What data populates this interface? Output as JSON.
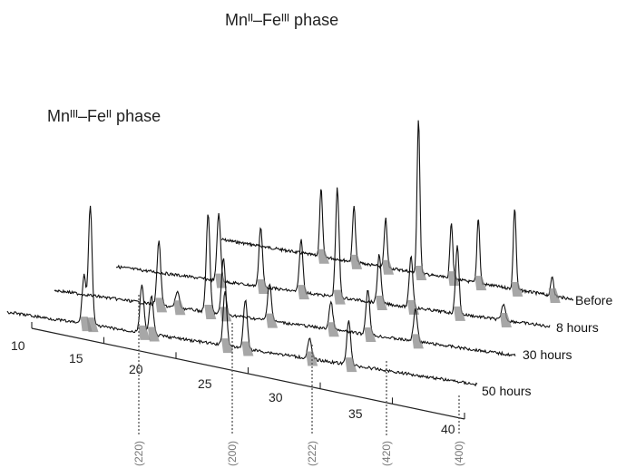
{
  "chart_data": {
    "type": "line",
    "title": "",
    "xlabel": "",
    "ylabel": "",
    "xlim": [
      10,
      40
    ],
    "x_ticks": [
      10,
      15,
      20,
      25,
      30,
      35,
      40
    ],
    "annotations": {
      "phase_left": "Mnᴵᴵᴵ–Feᴵᴵ phase",
      "phase_right": "Mnᴵᴵ–Feᴵᴵᴵ phase",
      "reflections": [
        "(220)",
        "(200)",
        "(222)",
        "(420)",
        "(400)"
      ]
    },
    "series": [
      {
        "name": "Before",
        "peaks": [
          [
            18.5,
            0.62,
            0.12
          ],
          [
            21.3,
            0.52,
            0.12
          ],
          [
            24.0,
            0.45,
            0.12
          ],
          [
            26.8,
            1.4,
            0.12
          ],
          [
            29.6,
            0.52,
            0.12
          ],
          [
            31.9,
            0.6,
            0.12
          ],
          [
            35.0,
            0.75,
            0.12
          ],
          [
            38.2,
            0.18,
            0.12
          ]
        ]
      },
      {
        "name": "8 hours",
        "peaks": [
          [
            17.1,
            0.62,
            0.12
          ],
          [
            20.0,
            0.55,
            0.12
          ],
          [
            22.8,
            0.48,
            0.12
          ],
          [
            25.3,
            1.0,
            0.12
          ],
          [
            28.2,
            0.45,
            0.12
          ],
          [
            30.4,
            0.48,
            0.12
          ],
          [
            33.6,
            0.62,
            0.12
          ],
          [
            36.8,
            0.15,
            0.12
          ]
        ]
      },
      {
        "name": "30 hours",
        "peaks": [
          [
            16.8,
            0.58,
            0.12
          ],
          [
            18.0,
            0.15,
            0.12
          ],
          [
            20.0,
            0.9,
            0.12
          ],
          [
            21.0,
            0.52,
            0.12
          ],
          [
            24.0,
            0.35,
            0.12
          ],
          [
            28.0,
            0.25,
            0.12
          ],
          [
            30.4,
            0.42,
            0.12
          ],
          [
            33.5,
            0.3,
            0.12
          ]
        ]
      },
      {
        "name": "50 hours",
        "peaks": [
          [
            14.9,
            0.45,
            0.12
          ],
          [
            15.3,
            1.1,
            0.12
          ],
          [
            18.6,
            0.45,
            0.12
          ],
          [
            19.2,
            0.36,
            0.12
          ],
          [
            23.9,
            0.5,
            0.12
          ],
          [
            25.2,
            0.45,
            0.12
          ],
          [
            29.3,
            0.18,
            0.12
          ],
          [
            31.8,
            0.42,
            0.12
          ]
        ]
      }
    ]
  }
}
